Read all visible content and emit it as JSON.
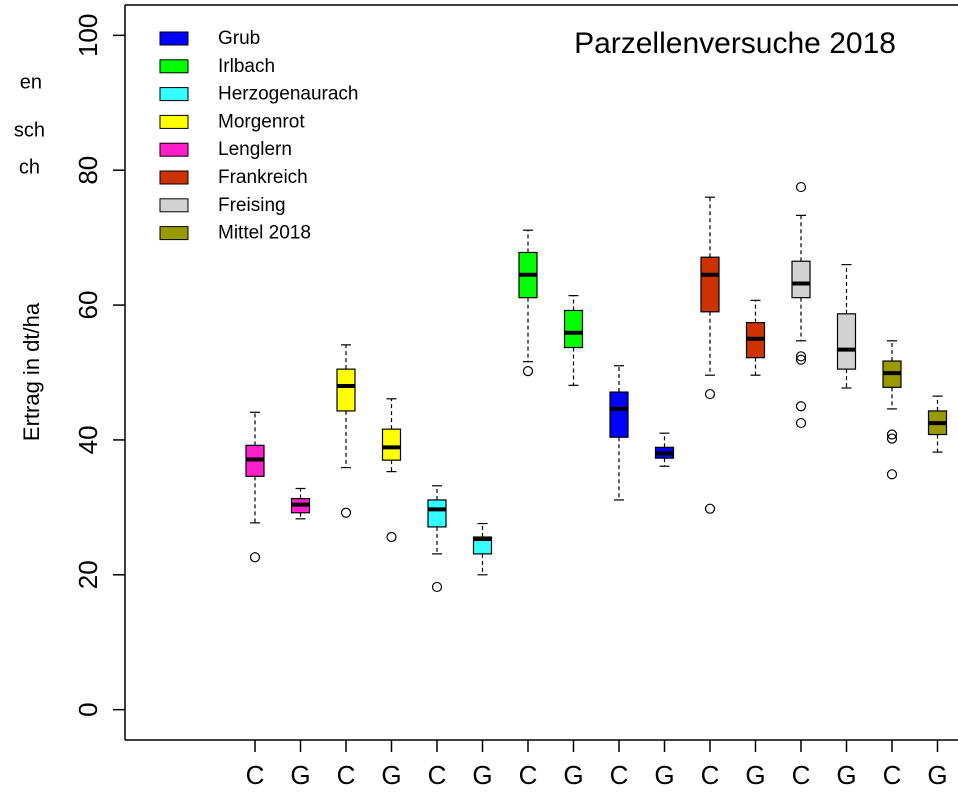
{
  "chart_data": {
    "type": "box",
    "title": "Parzellenversuche 2018",
    "ylabel": "Ertrag in dt/ha",
    "annotations": [
      "en",
      "sch",
      "ch"
    ],
    "ylim": [
      -4.5,
      104.5
    ],
    "yticks": [
      0,
      20,
      40,
      60,
      80,
      100
    ],
    "categories": [
      "C",
      "G",
      "C",
      "G",
      "C",
      "G",
      "C",
      "G",
      "C",
      "G",
      "C",
      "G",
      "C",
      "G",
      "C",
      "G"
    ],
    "boxes": [
      {
        "color": "#ff1fc8",
        "whislo": 27.7,
        "q1": 34.6,
        "med": 37.1,
        "q3": 39.2,
        "whishi": 44.1,
        "fliers": [
          22.6
        ]
      },
      {
        "color": "#ff1fc8",
        "whislo": 28.3,
        "q1": 29.2,
        "med": 30.4,
        "q3": 31.3,
        "whishi": 32.8,
        "fliers": []
      },
      {
        "color": "#ffff00",
        "whislo": 35.9,
        "q1": 44.3,
        "med": 48.0,
        "q3": 50.5,
        "whishi": 54.1,
        "fliers": [
          29.2
        ]
      },
      {
        "color": "#ffff00",
        "whislo": 35.3,
        "q1": 37.0,
        "med": 38.9,
        "q3": 41.6,
        "whishi": 46.1,
        "fliers": [
          25.6
        ]
      },
      {
        "color": "#33ffff",
        "whislo": 23.1,
        "q1": 27.1,
        "med": 29.7,
        "q3": 31.1,
        "whishi": 33.2,
        "fliers": [
          18.2
        ]
      },
      {
        "color": "#33ffff",
        "whislo": 20.0,
        "q1": 23.1,
        "med": 25.3,
        "q3": 25.6,
        "whishi": 27.6,
        "fliers": []
      },
      {
        "color": "#00ff00",
        "whislo": 51.6,
        "q1": 61.1,
        "med": 64.5,
        "q3": 67.8,
        "whishi": 71.1,
        "fliers": [
          50.2
        ]
      },
      {
        "color": "#00ff00",
        "whislo": 48.1,
        "q1": 53.7,
        "med": 55.9,
        "q3": 59.2,
        "whishi": 61.4,
        "fliers": []
      },
      {
        "color": "#0000ff",
        "whislo": 31.1,
        "q1": 40.4,
        "med": 44.6,
        "q3": 47.1,
        "whishi": 51.0,
        "fliers": []
      },
      {
        "color": "#0000ff",
        "whislo": 36.1,
        "q1": 37.3,
        "med": 38.0,
        "q3": 38.9,
        "whishi": 41.0,
        "fliers": []
      },
      {
        "color": "#cc3300",
        "whislo": 49.6,
        "q1": 59.0,
        "med": 64.5,
        "q3": 67.1,
        "whishi": 76.0,
        "fliers": [
          46.8,
          29.8
        ]
      },
      {
        "color": "#cc3300",
        "whislo": 49.6,
        "q1": 52.2,
        "med": 55.0,
        "q3": 57.4,
        "whishi": 60.7,
        "fliers": []
      },
      {
        "color": "#d3d3d3",
        "whislo": 54.7,
        "q1": 61.1,
        "med": 63.2,
        "q3": 66.5,
        "whishi": 73.3,
        "fliers": [
          77.5,
          52.4,
          51.9,
          45.0,
          42.5
        ]
      },
      {
        "color": "#d3d3d3",
        "whislo": 47.7,
        "q1": 50.5,
        "med": 53.4,
        "q3": 58.7,
        "whishi": 66.0,
        "fliers": []
      },
      {
        "color": "#999900",
        "whislo": 44.6,
        "q1": 47.8,
        "med": 49.9,
        "q3": 51.7,
        "whishi": 54.7,
        "fliers": [
          40.8,
          40.2,
          34.9
        ]
      },
      {
        "color": "#999900",
        "whislo": 38.2,
        "q1": 40.8,
        "med": 42.5,
        "q3": 44.3,
        "whishi": 46.5,
        "fliers": []
      }
    ],
    "legend": [
      {
        "name": "Grub",
        "color": "#0000ff"
      },
      {
        "name": "Irlbach",
        "color": "#00ff00"
      },
      {
        "name": "Herzogenaurach",
        "color": "#33ffff"
      },
      {
        "name": "Morgenrot",
        "color": "#ffff00"
      },
      {
        "name": "Lenglern",
        "color": "#ff1fc8"
      },
      {
        "name": "Frankreich",
        "color": "#cc3300"
      },
      {
        "name": "Freising",
        "color": "#d3d3d3"
      },
      {
        "name": "Mittel 2018",
        "color": "#999900"
      }
    ]
  }
}
